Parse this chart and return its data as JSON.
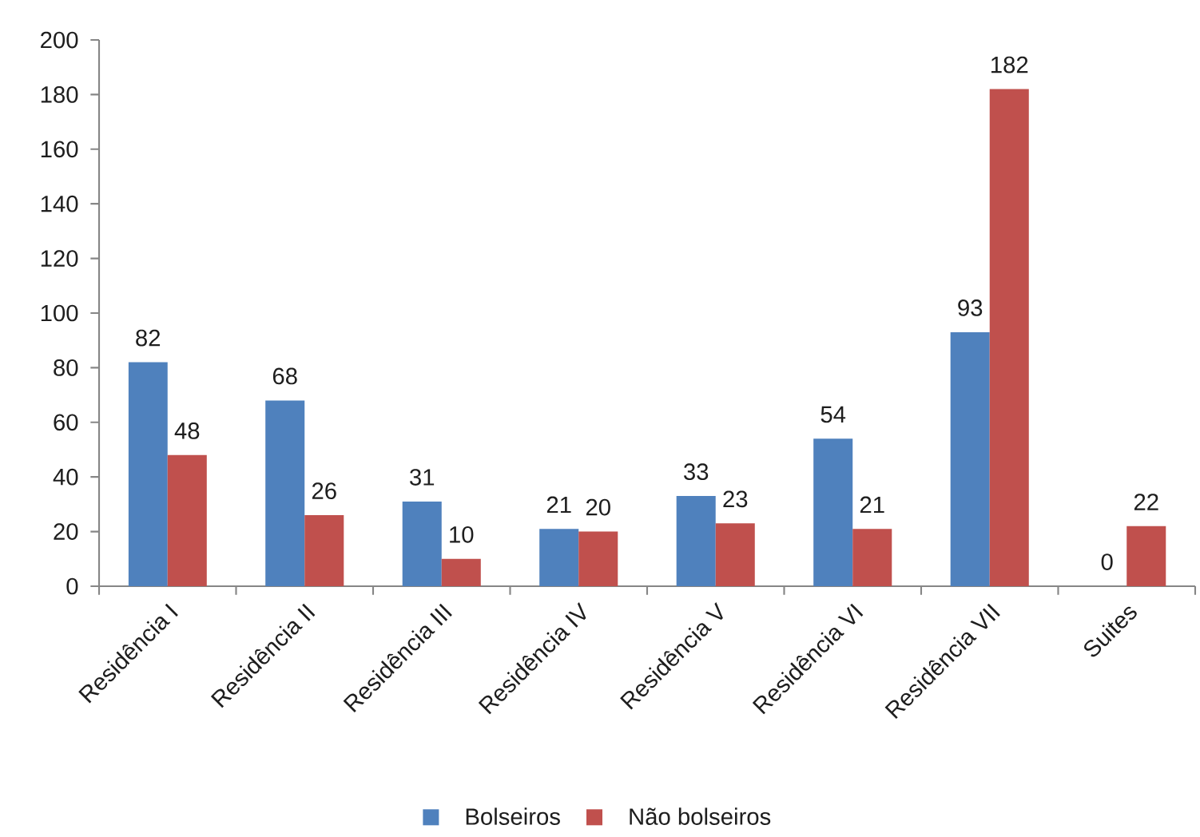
{
  "chart_data": {
    "type": "bar",
    "categories": [
      "Residência I",
      "Residência II",
      "Residência III",
      "Residência IV",
      "Residência V",
      "Residência VI",
      "Residência VII",
      "Suites"
    ],
    "series": [
      {
        "name": "Bolseiros",
        "color": "#4f81bd",
        "values": [
          82,
          68,
          31,
          21,
          33,
          54,
          93,
          0
        ]
      },
      {
        "name": "Não bolseiros",
        "color": "#c0504d",
        "values": [
          48,
          26,
          10,
          20,
          23,
          21,
          182,
          22
        ]
      }
    ],
    "ylim": [
      0,
      200
    ],
    "yticks": [
      0,
      20,
      40,
      60,
      80,
      100,
      120,
      140,
      160,
      180,
      200
    ],
    "data_labels": true,
    "legend": "bottom"
  }
}
